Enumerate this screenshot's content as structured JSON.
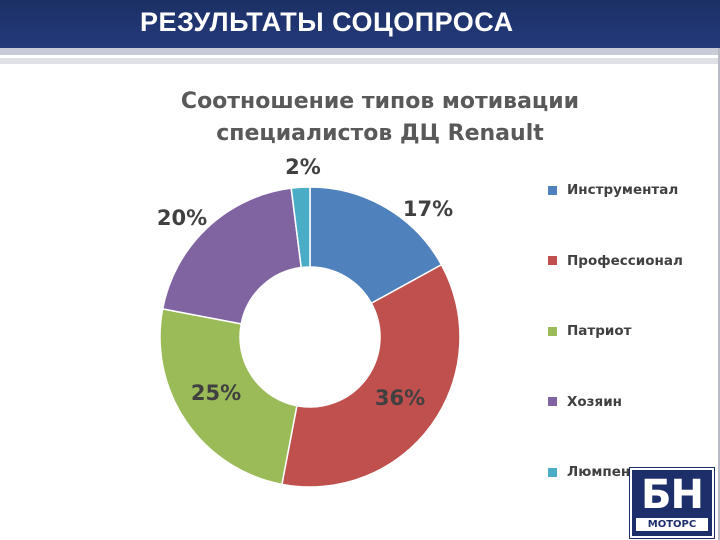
{
  "header": {
    "title": "РЕЗУЛЬТАТЫ СОЦОПРОСА"
  },
  "chart_data": {
    "type": "pie",
    "title_lines": [
      "Соотношение типов мотивации",
      "специалистов ДЦ Renault"
    ],
    "categories": [
      "Инструментал",
      "Профессионал",
      "Патриот",
      "Хозяин",
      "Люмпен"
    ],
    "values": [
      17,
      36,
      25,
      20,
      2
    ],
    "value_labels": [
      "17%",
      "36%",
      "25%",
      "20%",
      "2%"
    ],
    "colors": [
      "#4f81bd",
      "#c0504d",
      "#9bbb59",
      "#8064a2",
      "#4bacc6"
    ],
    "donut": true,
    "legend_position": "right"
  },
  "logo": {
    "main": "БН",
    "sub": "МОТОРС"
  }
}
